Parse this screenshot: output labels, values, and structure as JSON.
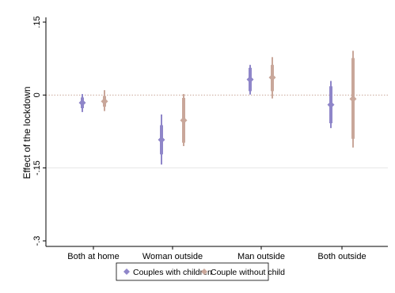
{
  "chart_data": {
    "type": "coefficient-plot",
    "title": "",
    "ylabel": "Effect of the lockdown",
    "xlabel": "",
    "ylim": [
      -0.3,
      0.15
    ],
    "yticks": [
      -0.3,
      -0.15,
      0,
      0.15
    ],
    "ytick_labels": [
      "-.3",
      "-.15",
      "0",
      ".15"
    ],
    "reference_lines": [
      {
        "y": 0,
        "style": "dotted",
        "color": "#c9a79a"
      },
      {
        "y": -0.15,
        "style": "solid",
        "color": "#e6e6e6"
      }
    ],
    "categories": [
      "Both at home",
      "Woman outside",
      "Man outside",
      "Both outside"
    ],
    "series": [
      {
        "name": "Couples with children",
        "color": "#8f86c9",
        "marker": "diamond",
        "estimates": [
          -0.016,
          -0.092,
          0.032,
          -0.02
        ],
        "ci90": [
          [
            -0.027,
            -0.005
          ],
          [
            -0.122,
            -0.062
          ],
          [
            0.008,
            0.056
          ],
          [
            -0.058,
            0.018
          ]
        ],
        "ci95": [
          [
            -0.035,
            0.002
          ],
          [
            -0.143,
            -0.04
          ],
          [
            0.001,
            0.062
          ],
          [
            -0.068,
            0.029
          ]
        ]
      },
      {
        "name": "Couple without child",
        "color": "#c9a79a",
        "marker": "diamond",
        "estimates": [
          -0.013,
          -0.052,
          0.036,
          -0.008
        ],
        "ci90": [
          [
            -0.024,
            -0.002
          ],
          [
            -0.098,
            -0.006
          ],
          [
            0.008,
            0.062
          ],
          [
            -0.09,
            0.076
          ]
        ],
        "ci95": [
          [
            -0.033,
            0.01
          ],
          [
            -0.105,
            0.002
          ],
          [
            -0.007,
            0.078
          ],
          [
            -0.108,
            0.091
          ]
        ]
      }
    ],
    "legend_position": "bottom"
  }
}
